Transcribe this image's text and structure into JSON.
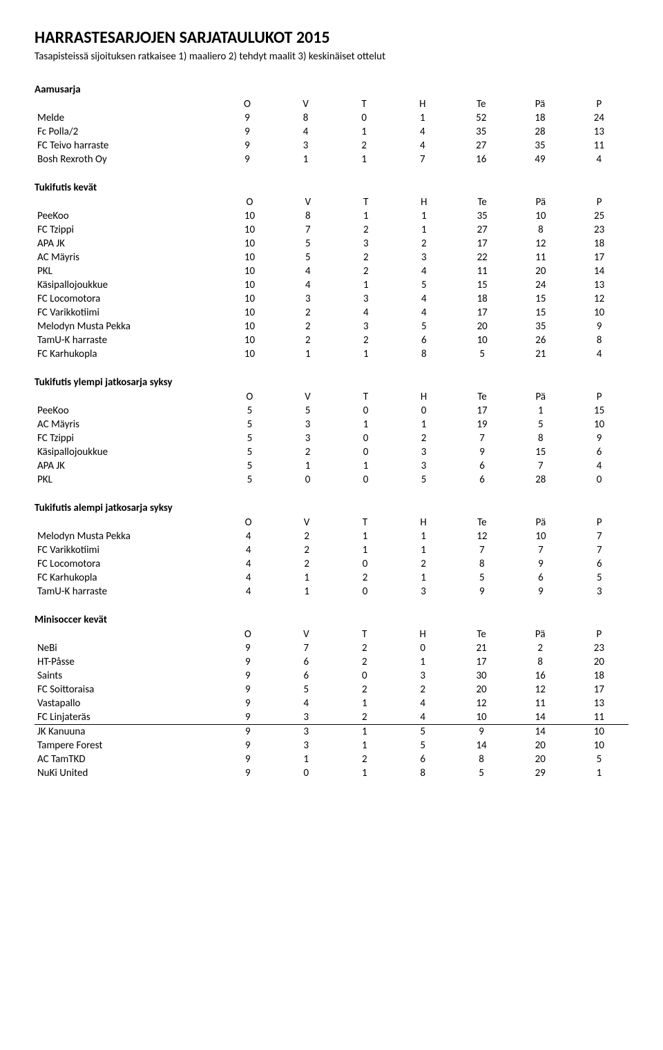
{
  "page_title": "HARRASTESARJOJEN SARJATAULUKOT 2015",
  "subtitle": "Tasapisteissä sijoituksen ratkaisee 1) maaliero 2) tehdyt maalit 3) keskinäiset ottelut",
  "columns": [
    "O",
    "V",
    "T",
    "H",
    "Te",
    "Pä",
    "P"
  ],
  "sections": [
    {
      "title": "Aamusarja",
      "rows": [
        {
          "name": "Melde",
          "vals": [
            9,
            8,
            0,
            1,
            52,
            18,
            24
          ]
        },
        {
          "name": "Fc Polla/2",
          "vals": [
            9,
            4,
            1,
            4,
            35,
            28,
            13
          ]
        },
        {
          "name": "FC Teivo harraste",
          "vals": [
            9,
            3,
            2,
            4,
            27,
            35,
            11
          ]
        },
        {
          "name": "Bosh Rexroth Oy",
          "vals": [
            9,
            1,
            1,
            7,
            16,
            49,
            4
          ]
        }
      ]
    },
    {
      "title": "Tukifutis kevät",
      "rows": [
        {
          "name": "PeeKoo",
          "vals": [
            10,
            8,
            1,
            1,
            35,
            10,
            25
          ]
        },
        {
          "name": "FC Tzippi",
          "vals": [
            10,
            7,
            2,
            1,
            27,
            8,
            23
          ]
        },
        {
          "name": "APA JK",
          "vals": [
            10,
            5,
            3,
            2,
            17,
            12,
            18
          ]
        },
        {
          "name": "AC Mäyris",
          "vals": [
            10,
            5,
            2,
            3,
            22,
            11,
            17
          ]
        },
        {
          "name": "PKL",
          "vals": [
            10,
            4,
            2,
            4,
            11,
            20,
            14
          ]
        },
        {
          "name": "Käsipallojoukkue",
          "vals": [
            10,
            4,
            1,
            5,
            15,
            24,
            13
          ]
        },
        {
          "name": "FC Locomotora",
          "vals": [
            10,
            3,
            3,
            4,
            18,
            15,
            12
          ]
        },
        {
          "name": "FC Varikkotiimi",
          "vals": [
            10,
            2,
            4,
            4,
            17,
            15,
            10
          ]
        },
        {
          "name": "Melodyn Musta Pekka",
          "vals": [
            10,
            2,
            3,
            5,
            20,
            35,
            9
          ]
        },
        {
          "name": "TamU-K harraste",
          "vals": [
            10,
            2,
            2,
            6,
            10,
            26,
            8
          ]
        },
        {
          "name": "FC Karhukopla",
          "vals": [
            10,
            1,
            1,
            8,
            5,
            21,
            4
          ]
        }
      ]
    },
    {
      "title": "Tukifutis ylempi jatkosarja syksy",
      "rows": [
        {
          "name": "PeeKoo",
          "vals": [
            5,
            5,
            0,
            0,
            17,
            1,
            15
          ]
        },
        {
          "name": "AC Mäyris",
          "vals": [
            5,
            3,
            1,
            1,
            19,
            5,
            10
          ]
        },
        {
          "name": "FC Tzippi",
          "vals": [
            5,
            3,
            0,
            2,
            7,
            8,
            9
          ]
        },
        {
          "name": "Käsipallojoukkue",
          "vals": [
            5,
            2,
            0,
            3,
            9,
            15,
            6
          ]
        },
        {
          "name": "APA JK",
          "vals": [
            5,
            1,
            1,
            3,
            6,
            7,
            4
          ]
        },
        {
          "name": "PKL",
          "vals": [
            5,
            0,
            0,
            5,
            6,
            28,
            0
          ]
        }
      ]
    },
    {
      "title": "Tukifutis alempi jatkosarja syksy",
      "rows": [
        {
          "name": "Melodyn Musta Pekka",
          "vals": [
            4,
            2,
            1,
            1,
            12,
            10,
            7
          ]
        },
        {
          "name": "FC Varikkotiimi",
          "vals": [
            4,
            2,
            1,
            1,
            7,
            7,
            7
          ]
        },
        {
          "name": "FC Locomotora",
          "vals": [
            4,
            2,
            0,
            2,
            8,
            9,
            6
          ]
        },
        {
          "name": "FC Karhukopla",
          "vals": [
            4,
            1,
            2,
            1,
            5,
            6,
            5
          ]
        },
        {
          "name": "TamU-K harraste",
          "vals": [
            4,
            1,
            0,
            3,
            9,
            9,
            3
          ]
        }
      ]
    },
    {
      "title": "Minisoccer kevät",
      "dividerAfter": 5,
      "rows": [
        {
          "name": "NeBi",
          "vals": [
            9,
            7,
            2,
            0,
            21,
            2,
            23
          ]
        },
        {
          "name": "HT-Påsse",
          "vals": [
            9,
            6,
            2,
            1,
            17,
            8,
            20
          ]
        },
        {
          "name": "Saints",
          "vals": [
            9,
            6,
            0,
            3,
            30,
            16,
            18
          ]
        },
        {
          "name": "FC Soittoraisa",
          "vals": [
            9,
            5,
            2,
            2,
            20,
            12,
            17
          ]
        },
        {
          "name": "Vastapallo",
          "vals": [
            9,
            4,
            1,
            4,
            12,
            11,
            13
          ]
        },
        {
          "name": "FC Linjateräs",
          "vals": [
            9,
            3,
            2,
            4,
            10,
            14,
            11
          ]
        },
        {
          "name": "JK Kanuuna",
          "vals": [
            9,
            3,
            1,
            5,
            9,
            14,
            10
          ]
        },
        {
          "name": "Tampere Forest",
          "vals": [
            9,
            3,
            1,
            5,
            14,
            20,
            10
          ]
        },
        {
          "name": "AC TamTKD",
          "vals": [
            9,
            1,
            2,
            6,
            8,
            20,
            5
          ]
        },
        {
          "name": "NuKi United",
          "vals": [
            9,
            0,
            1,
            8,
            5,
            29,
            1
          ]
        }
      ]
    }
  ]
}
